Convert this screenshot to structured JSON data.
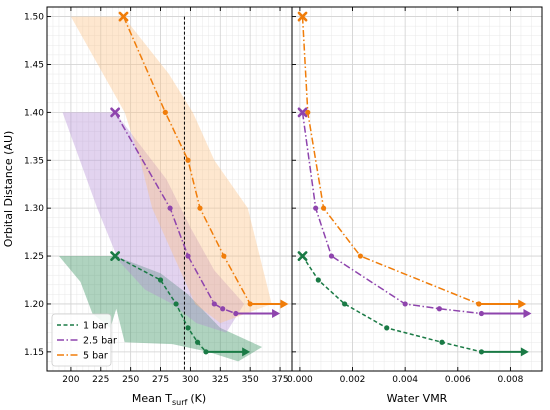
{
  "chart_data": [
    {
      "type": "line",
      "xlabel_main": "Mean T",
      "xlabel_sub": "surf",
      "xlabel_unit": "(K)",
      "ylabel": "Orbital Distance (AU)",
      "xlim": [
        180,
        385
      ],
      "ylim": [
        1.13,
        1.51
      ],
      "xticks": [
        200,
        225,
        250,
        275,
        300,
        325,
        350,
        375
      ],
      "yticks": [
        1.15,
        1.2,
        1.25,
        1.3,
        1.35,
        1.4,
        1.45,
        1.5
      ],
      "ytick_labels": [
        "1.15",
        "1.20",
        "1.25",
        "1.30",
        "1.35",
        "1.40",
        "1.45",
        "1.50"
      ],
      "grid": true,
      "vline_x": 295,
      "legend_position": "lower-left",
      "series": [
        {
          "name": "1 bar",
          "color": "#1a7a45",
          "band_color": "#2e8b57",
          "dash": "4,2.5",
          "x": [
            237,
            275,
            288,
            298,
            306,
            313
          ],
          "y": [
            1.25,
            1.225,
            1.2,
            1.175,
            1.16,
            1.15
          ],
          "band_upper": [
            [
              190,
              1.25
            ],
            [
              237,
              1.25
            ],
            [
              275,
              1.232
            ],
            [
              298,
              1.21
            ],
            [
              325,
              1.175
            ],
            [
              360,
              1.155
            ]
          ],
          "band_lower": [
            [
              208,
              1.223
            ],
            [
              218,
              1.19
            ],
            [
              233,
              1.175
            ],
            [
              238,
              1.195
            ],
            [
              245,
              1.16
            ],
            [
              285,
              1.158
            ],
            [
              315,
              1.15
            ],
            [
              340,
              1.14
            ]
          ],
          "arrow_end": [
            350,
            1.15
          ]
        },
        {
          "name": "2.5 bar",
          "color": "#8e44ad",
          "band_color": "#b28bd6",
          "dash": "7,2.5,1.5,2.5",
          "x": [
            237,
            283,
            298,
            320,
            327,
            338
          ],
          "y": [
            1.4,
            1.3,
            1.25,
            1.2,
            1.195,
            1.19
          ],
          "band_upper": [
            [
              193,
              1.4
            ],
            [
              237,
              1.4
            ],
            [
              280,
              1.33
            ],
            [
              300,
              1.28
            ],
            [
              320,
              1.235
            ],
            [
              345,
              1.2
            ]
          ],
          "band_lower": [
            [
              222,
              1.3
            ],
            [
              240,
              1.245
            ],
            [
              262,
              1.215
            ],
            [
              285,
              1.2
            ],
            [
              305,
              1.18
            ],
            [
              330,
              1.17
            ]
          ],
          "arrow_end": [
            375,
            1.19
          ]
        },
        {
          "name": "5 bar",
          "color": "#f07d0a",
          "band_color": "#fdbf80",
          "dash": "7,2.5,1.5,2.5",
          "x": [
            244,
            279,
            298,
            308,
            328,
            350
          ],
          "y": [
            1.5,
            1.4,
            1.35,
            1.3,
            1.25,
            1.2
          ],
          "band_upper": [
            [
              205,
              1.5
            ],
            [
              244,
              1.5
            ],
            [
              282,
              1.44
            ],
            [
              302,
              1.4
            ],
            [
              320,
              1.35
            ],
            [
              348,
              1.3
            ],
            [
              368,
              1.2
            ]
          ],
          "band_lower": [
            [
              200,
              1.5
            ],
            [
              245,
              1.4
            ],
            [
              258,
              1.35
            ],
            [
              268,
              1.3
            ],
            [
              286,
              1.25
            ],
            [
              304,
              1.2
            ],
            [
              325,
              1.18
            ]
          ],
          "arrow_end": [
            382,
            1.2
          ]
        }
      ]
    },
    {
      "type": "line",
      "xlabel": "Water VMR",
      "xlim": [
        -0.0003,
        0.0092
      ],
      "ylim": [
        1.13,
        1.51
      ],
      "xticks": [
        0,
        0.002,
        0.004,
        0.006,
        0.008
      ],
      "xtick_labels": [
        "0.000",
        "0.002",
        "0.004",
        "0.006",
        "0.008"
      ],
      "grid": true,
      "series": [
        {
          "name": "1 bar",
          "color": "#1a7a45",
          "dash": "4,2.5",
          "x": [
            0.0001,
            0.0007,
            0.0017,
            0.0033,
            0.0054,
            0.0069
          ],
          "y": [
            1.25,
            1.225,
            1.2,
            1.175,
            1.16,
            1.15
          ],
          "arrow_end": [
            0.0087,
            1.15
          ]
        },
        {
          "name": "2.5 bar",
          "color": "#8e44ad",
          "dash": "7,2.5,1.5,2.5",
          "x": [
            0.0001,
            0.0006,
            0.0012,
            0.004,
            0.0053,
            0.0069
          ],
          "y": [
            1.4,
            1.3,
            1.25,
            1.2,
            1.195,
            1.19
          ],
          "arrow_end": [
            0.0088,
            1.19
          ]
        },
        {
          "name": "5 bar",
          "color": "#f07d0a",
          "dash": "7,2.5,1.5,2.5",
          "x": [
            0.0001,
            0.0003,
            0.0009,
            0.0023,
            0.0068,
            0.0068
          ],
          "y": [
            1.5,
            1.4,
            1.3,
            1.25,
            1.2,
            1.2
          ],
          "arrow_end": [
            0.0086,
            1.2
          ]
        }
      ]
    }
  ]
}
